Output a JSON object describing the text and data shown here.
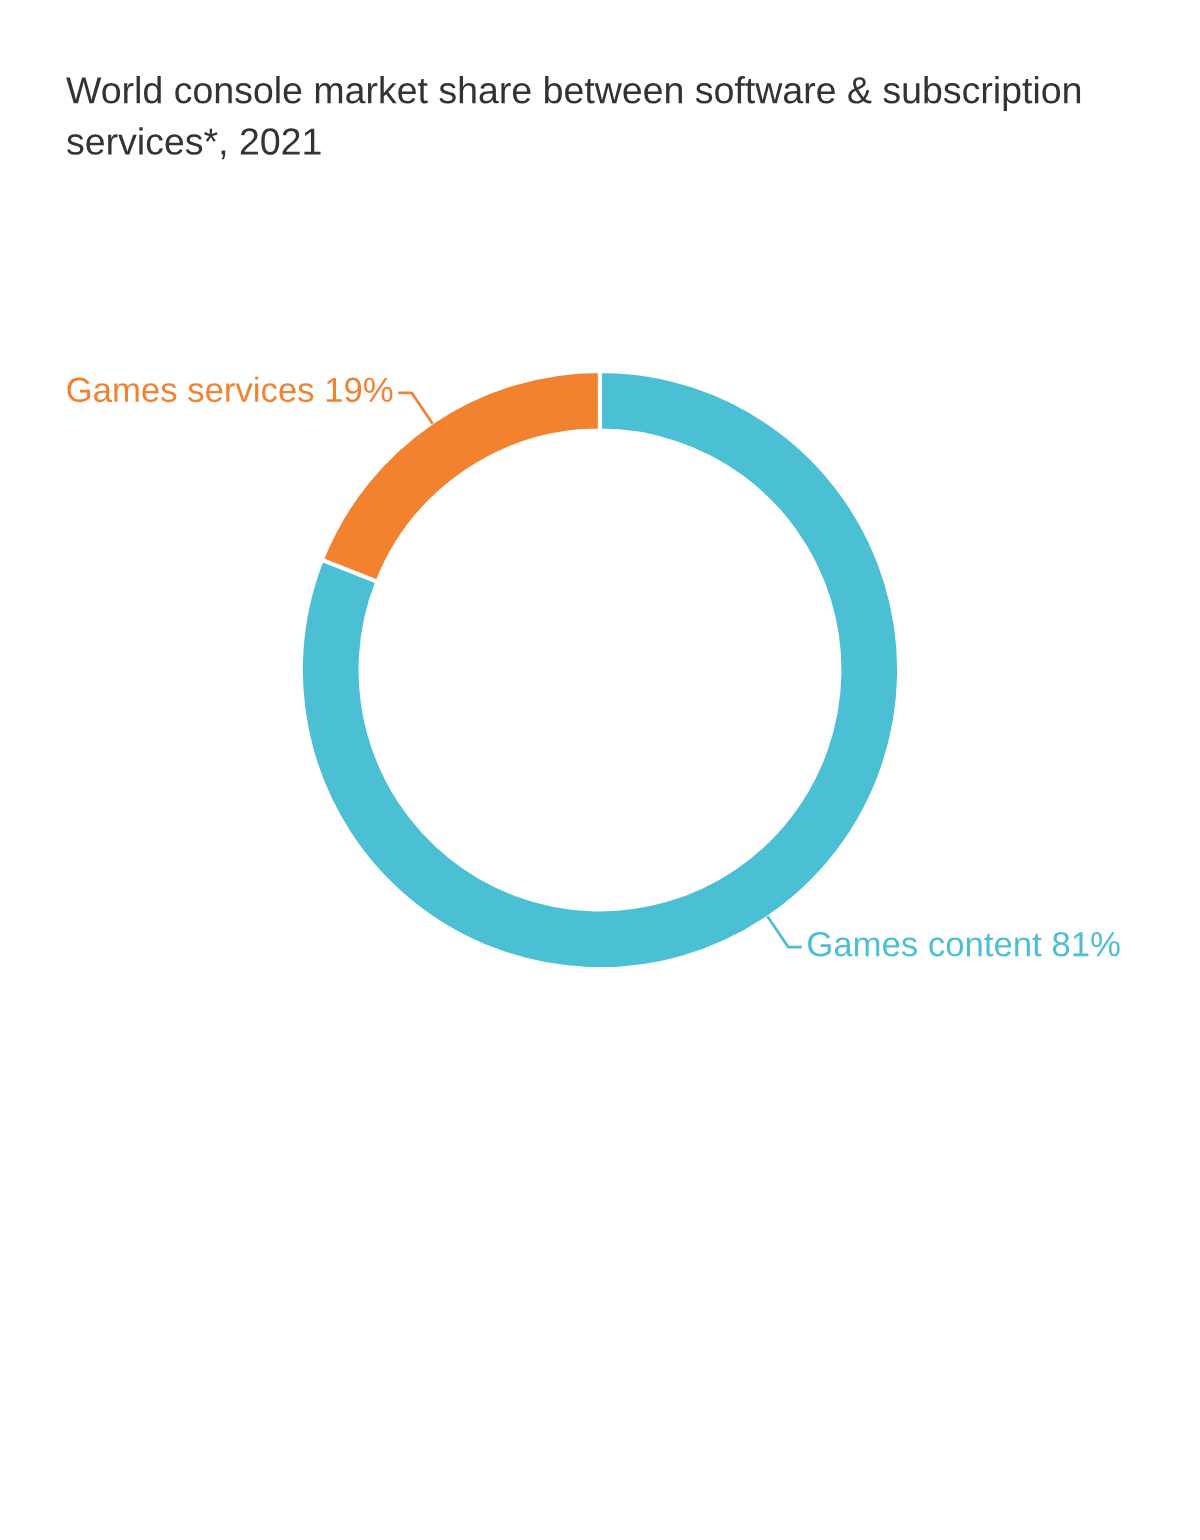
{
  "chart_data": {
    "type": "donut",
    "title": "World console market share between software & subscription services*, 2021",
    "categories": [
      "Games services",
      "Games content"
    ],
    "values": [
      19,
      81
    ],
    "value_labels": [
      "19%",
      "81%"
    ],
    "colors": [
      "#f28230",
      "#4bbfd3"
    ]
  }
}
